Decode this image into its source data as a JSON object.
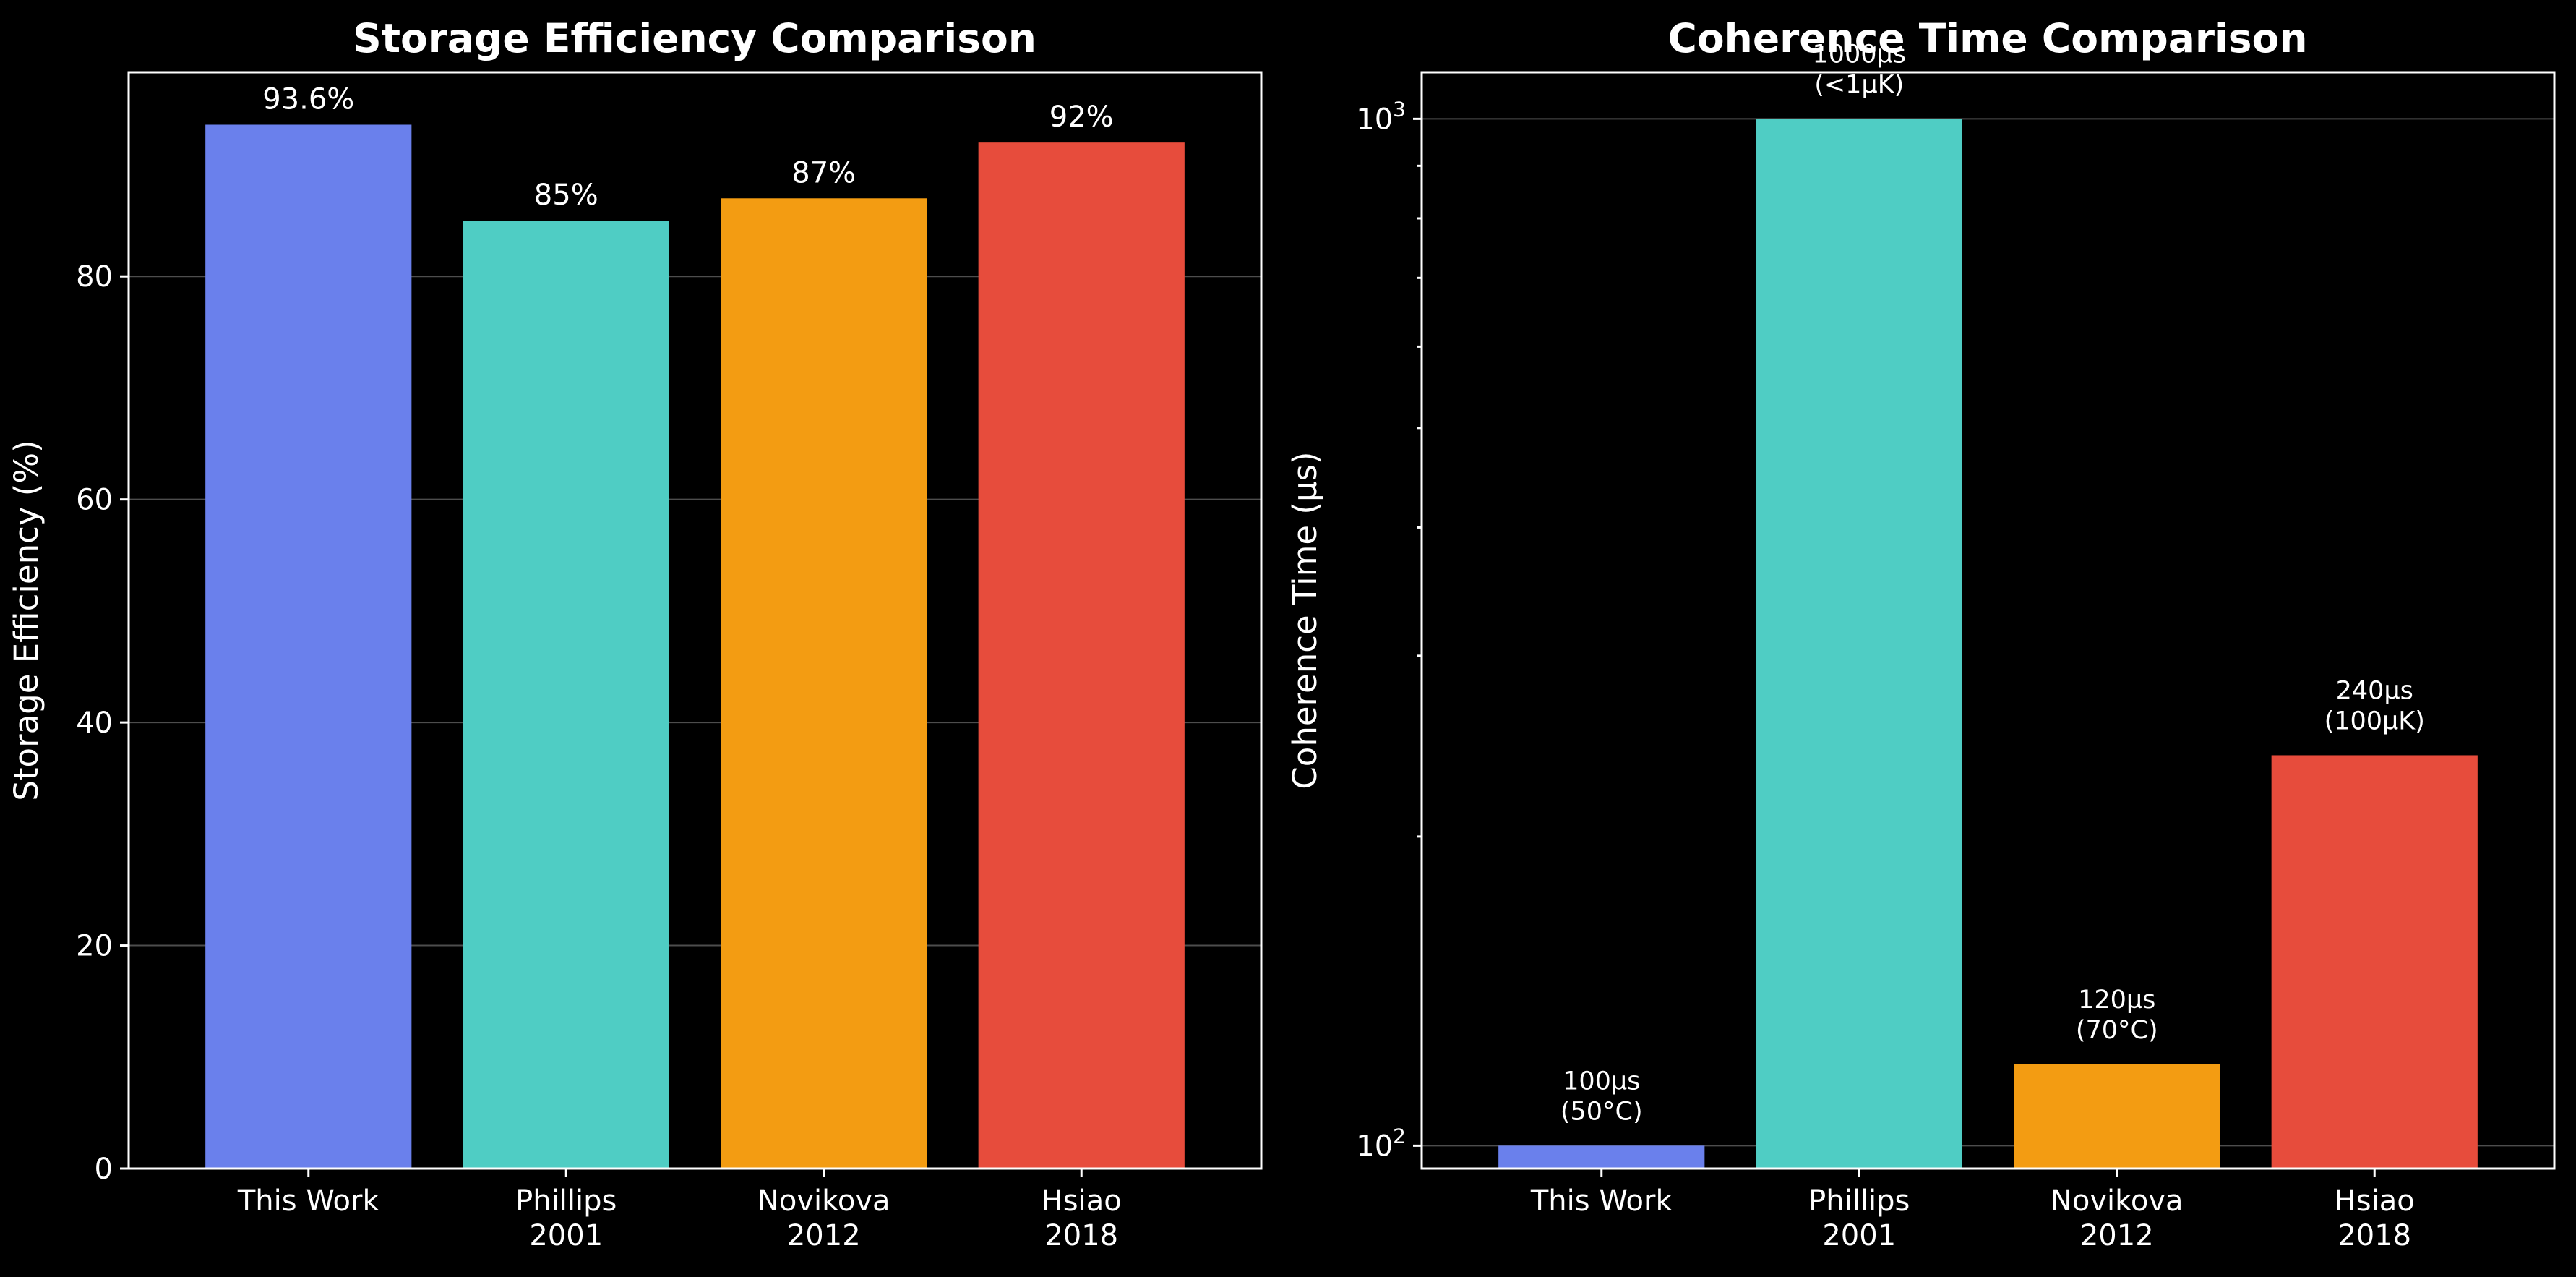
{
  "chart_data": [
    {
      "type": "bar",
      "title": "Storage Efficiency Comparison",
      "xlabel": "",
      "ylabel": "Storage Efficiency (%)",
      "categories": [
        [
          "This Work"
        ],
        [
          "Phillips",
          "2001"
        ],
        [
          "Novikova",
          "2012"
        ],
        [
          "Hsiao",
          "2018"
        ]
      ],
      "values": [
        93.6,
        85,
        87,
        92
      ],
      "data_labels": [
        "93.6%",
        "85%",
        "87%",
        "92%"
      ],
      "colors": [
        "#6a80ec",
        "#4fcdc4",
        "#f39c12",
        "#e74c3c"
      ],
      "ylim": [
        0,
        98.3
      ],
      "yticks": [
        0,
        20,
        40,
        60,
        80
      ],
      "grid": true,
      "grid_axis": "y"
    },
    {
      "type": "bar",
      "title": "Coherence Time Comparison",
      "xlabel": "",
      "ylabel": "Coherence Time (µs)",
      "categories": [
        [
          "This Work"
        ],
        [
          "Phillips",
          "2001"
        ],
        [
          "Novikova",
          "2012"
        ],
        [
          "Hsiao",
          "2018"
        ]
      ],
      "values": [
        100,
        1000,
        120,
        240
      ],
      "data_labels": [
        [
          "100µs",
          "(50°C)"
        ],
        [
          "1000µs",
          "(<1µK)"
        ],
        [
          "120µs",
          "(70°C)"
        ],
        [
          "240µs",
          "(100µK)"
        ]
      ],
      "colors": [
        "#6a80ec",
        "#4fcdc4",
        "#f39c12",
        "#e74c3c"
      ],
      "yscale": "log",
      "ylim": [
        95,
        1110
      ],
      "yticks": [
        100,
        1000
      ],
      "ytick_labels": [
        [
          "10",
          "2"
        ],
        [
          "10",
          "3"
        ]
      ],
      "grid": true,
      "grid_axis": "y"
    }
  ]
}
